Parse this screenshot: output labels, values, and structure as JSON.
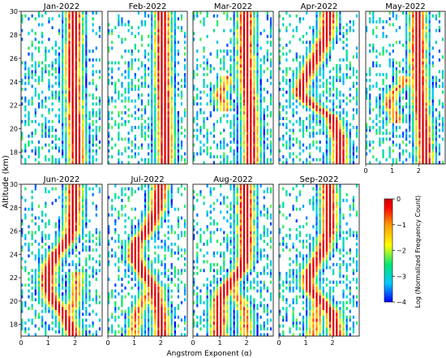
{
  "figure": {
    "ylabel": "Altitude (km)",
    "xlabel": "Angstrom Exponent (α)",
    "colorbar_label": "Log (Normalized Frequency Count)"
  },
  "colormap": [
    "#0000ff",
    "#00c8ff",
    "#00e676",
    "#ffff00",
    "#ff9900",
    "#ff0000",
    "#cc0000"
  ],
  "chart_data": {
    "type": "heatmap",
    "x_range": [
      0,
      3
    ],
    "y_range": [
      17,
      30
    ],
    "x_ticks": [
      "0",
      "1",
      "2"
    ],
    "x_tick_values": [
      0,
      1,
      2
    ],
    "y_ticks": [
      "18",
      "20",
      "22",
      "24",
      "26",
      "28",
      "30"
    ],
    "y_tick_values": [
      18,
      20,
      22,
      24,
      26,
      28,
      30
    ],
    "colorbar": {
      "range": [
        -4,
        0
      ],
      "ticks": [
        "0",
        "−1",
        "−2",
        "−3",
        "−4"
      ],
      "tick_values": [
        0,
        -1,
        -2,
        -3,
        -4
      ]
    },
    "panels": [
      {
        "title": "Jan-2022",
        "ridge": [
          [
            17,
            2.1
          ],
          [
            20,
            2.05
          ],
          [
            22,
            2.0
          ],
          [
            24,
            1.95
          ],
          [
            26,
            1.95
          ],
          [
            28,
            2.0
          ],
          [
            30,
            2.0
          ]
        ],
        "secondary": []
      },
      {
        "title": "Feb-2022",
        "ridge": [
          [
            17,
            2.2
          ],
          [
            20,
            2.2
          ],
          [
            22,
            2.15
          ],
          [
            24,
            2.1
          ],
          [
            26,
            2.1
          ],
          [
            28,
            2.1
          ],
          [
            30,
            2.1
          ]
        ],
        "secondary": []
      },
      {
        "title": "Mar-2022",
        "ridge": [
          [
            17,
            2.2
          ],
          [
            20,
            2.2
          ],
          [
            22,
            2.15
          ],
          [
            24,
            2.05
          ],
          [
            26,
            2.0
          ],
          [
            28,
            2.0
          ],
          [
            30,
            2.0
          ]
        ],
        "secondary": [
          [
            22,
            1.2
          ],
          [
            23,
            1.0
          ],
          [
            24,
            1.3
          ]
        ]
      },
      {
        "title": "Apr-2022",
        "ridge": [
          [
            17,
            2.3
          ],
          [
            19,
            2.3
          ],
          [
            21,
            2.0
          ],
          [
            22,
            1.3
          ],
          [
            23,
            0.8
          ],
          [
            24,
            0.9
          ],
          [
            26,
            1.4
          ],
          [
            28,
            1.8
          ],
          [
            30,
            1.9
          ]
        ],
        "secondary": []
      },
      {
        "title": "May-2022",
        "ridge": [
          [
            17,
            2.3
          ],
          [
            20,
            2.2
          ],
          [
            22,
            2.1
          ],
          [
            24,
            2.05
          ],
          [
            26,
            2.0
          ],
          [
            28,
            2.0
          ],
          [
            30,
            2.0
          ]
        ],
        "secondary": [
          [
            21,
            1.2
          ],
          [
            22,
            0.9
          ],
          [
            23,
            1.0
          ],
          [
            24,
            1.5
          ]
        ]
      },
      {
        "title": "Jun-2022",
        "ridge": [
          [
            17,
            2.0
          ],
          [
            19,
            1.6
          ],
          [
            20,
            1.2
          ],
          [
            21,
            1.0
          ],
          [
            22,
            1.0
          ],
          [
            23,
            1.1
          ],
          [
            24,
            1.3
          ],
          [
            25,
            1.7
          ],
          [
            26,
            1.9
          ],
          [
            28,
            2.0
          ],
          [
            30,
            2.0
          ]
        ],
        "secondary": [
          [
            19,
            1.8
          ],
          [
            20,
            2.0
          ],
          [
            21,
            2.1
          ],
          [
            22,
            2.1
          ]
        ]
      },
      {
        "title": "Jul-2022",
        "ridge": [
          [
            17,
            2.1
          ],
          [
            19,
            2.0
          ],
          [
            21,
            1.8
          ],
          [
            22,
            1.5
          ],
          [
            23,
            1.2
          ],
          [
            24,
            1.0
          ],
          [
            25,
            1.1
          ],
          [
            26,
            1.5
          ],
          [
            28,
            1.9
          ],
          [
            30,
            2.0
          ]
        ],
        "secondary": [
          [
            17,
            1.0
          ],
          [
            19,
            1.1
          ],
          [
            20,
            1.4
          ],
          [
            21,
            1.6
          ]
        ]
      },
      {
        "title": "Aug-2022",
        "ridge": [
          [
            17,
            1.0
          ],
          [
            19,
            1.0
          ],
          [
            20,
            1.0
          ],
          [
            21,
            1.2
          ],
          [
            22,
            1.6
          ],
          [
            23,
            1.9
          ],
          [
            24,
            2.0
          ],
          [
            26,
            2.0
          ],
          [
            28,
            2.0
          ],
          [
            30,
            2.0
          ]
        ],
        "secondary": [
          [
            17,
            2.0
          ],
          [
            19,
            2.0
          ],
          [
            20,
            1.8
          ],
          [
            21,
            1.5
          ]
        ]
      },
      {
        "title": "Sep-2022",
        "ridge": [
          [
            17,
            2.2
          ],
          [
            19,
            2.0
          ],
          [
            20,
            1.6
          ],
          [
            21,
            1.2
          ],
          [
            22,
            1.1
          ],
          [
            23,
            1.3
          ],
          [
            24,
            1.6
          ],
          [
            26,
            1.9
          ],
          [
            28,
            1.9
          ],
          [
            30,
            1.9
          ]
        ],
        "secondary": [
          [
            17,
            1.3
          ],
          [
            18,
            1.4
          ],
          [
            20,
            1.5
          ]
        ]
      }
    ]
  }
}
